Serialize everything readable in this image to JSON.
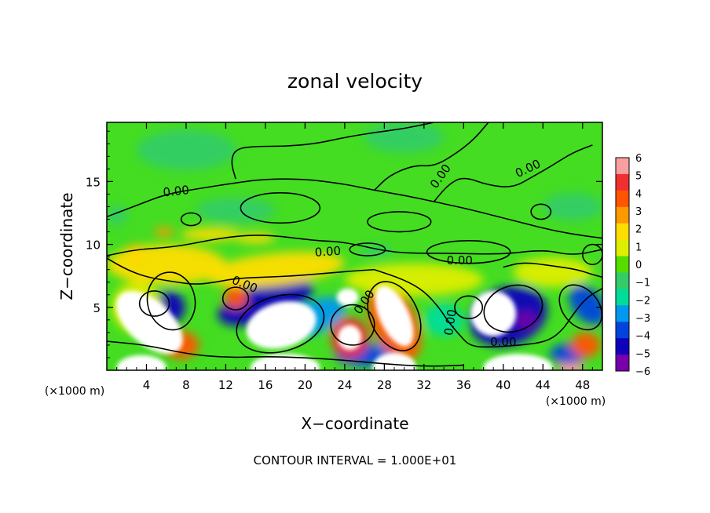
{
  "chart_data": {
    "type": "heatmap",
    "title": "zonal velocity",
    "xlabel": "X−coordinate",
    "ylabel": "Z−coordinate",
    "x_unit": "(×1000 m)",
    "y_unit": "(×1000 m)",
    "xlim": [
      0,
      50
    ],
    "ylim": [
      0,
      19.7
    ],
    "x_ticks": [
      4,
      8,
      12,
      16,
      20,
      24,
      28,
      32,
      36,
      40,
      44,
      48
    ],
    "y_ticks": [
      5,
      10,
      15
    ],
    "x_tick_labels": [
      "4",
      "8",
      "12",
      "16",
      "20",
      "24",
      "28",
      "32",
      "36",
      "40",
      "44",
      "48"
    ],
    "y_tick_labels": [
      "5",
      "10",
      "15"
    ],
    "footer": "CONTOUR INTERVAL = 1.000E+01",
    "colorbar": {
      "levels": [
        6,
        5,
        4,
        3,
        2,
        1,
        0,
        -1,
        -2,
        -3,
        -4,
        -5,
        -6
      ],
      "labels": [
        "6",
        "5",
        "4",
        "3",
        "2",
        "1",
        "0",
        "−1",
        "−2",
        "−3",
        "−4",
        "−5",
        "−6"
      ],
      "colors": [
        "#f8a0a0",
        "#f03030",
        "#ff5500",
        "#ff9900",
        "#ffdd00",
        "#ddee00",
        "#55dd00",
        "#33cc66",
        "#00dd99",
        "#0099ee",
        "#0044dd",
        "#1100bb",
        "#7700aa"
      ]
    },
    "contour_labels": [
      {
        "text": "0.00",
        "x": 7,
        "z": 14.2,
        "rot": -6
      },
      {
        "text": "0.00",
        "x": 22.3,
        "z": 9.4,
        "rot": -4
      },
      {
        "text": "0.00",
        "x": 13.9,
        "z": 6.8,
        "rot": 22
      },
      {
        "text": "0.00",
        "x": 26,
        "z": 5.4,
        "rot": -55
      },
      {
        "text": "0.00",
        "x": 33.7,
        "z": 15.4,
        "rot": -55
      },
      {
        "text": "0.00",
        "x": 42.5,
        "z": 16,
        "rot": -25
      },
      {
        "text": "0.00",
        "x": 35.6,
        "z": 8.7,
        "rot": 0
      },
      {
        "text": "0.00",
        "x": 34.7,
        "z": 3.8,
        "rot": -82
      },
      {
        "text": "0.00",
        "x": 40,
        "z": 2.2,
        "rot": 0
      }
    ],
    "features": [
      {
        "z_value": 9,
        "x": 4.3,
        "z": 3.8,
        "rx": 2.2,
        "rz": 3.2,
        "rot": -48
      },
      {
        "z_value": 8,
        "x": 17.6,
        "z": 3.6,
        "rx": 3.6,
        "rz": 1.8,
        "rot": -15
      },
      {
        "z_value": 8,
        "x": 29,
        "z": 4.3,
        "rx": 1.5,
        "rz": 2.6,
        "rot": -25
      },
      {
        "z_value": 8,
        "x": 39,
        "z": 4.5,
        "rx": 2.3,
        "rz": 1.8,
        "rot": -40
      },
      {
        "z_value": 7,
        "x": 24.5,
        "z": 2.6,
        "rx": 1.2,
        "rz": 1.0,
        "rot": 0
      },
      {
        "z_value": 7,
        "x": 24.3,
        "z": 5.8,
        "rx": 1.1,
        "rz": 0.7,
        "rot": 0
      },
      {
        "z_value": 7,
        "x": 18,
        "z": 0.2,
        "rx": 3.5,
        "rz": 1.1,
        "rot": 0
      },
      {
        "z_value": 7,
        "x": 3.5,
        "z": 0.2,
        "rx": 2.5,
        "rz": 1.0,
        "rot": 0
      },
      {
        "z_value": 7,
        "x": 29,
        "z": 0.2,
        "rx": 2.2,
        "rz": 1.2,
        "rot": 0
      },
      {
        "z_value": 7,
        "x": 41.5,
        "z": 0.2,
        "rx": 3.5,
        "rz": 1.1,
        "rot": 0
      },
      {
        "z_value": 6,
        "x": 46.8,
        "z": 0.2,
        "rx": 1.3,
        "rz": 0.7,
        "rot": 0
      },
      {
        "z_value": -5,
        "x": 16,
        "z": 5.4,
        "rx": 5.0,
        "rz": 1.5,
        "rot": -18
      },
      {
        "z_value": -5,
        "x": 6.3,
        "z": 5.0,
        "rx": 1.6,
        "rz": 1.3,
        "rot": -10
      },
      {
        "z_value": -5,
        "x": 40.5,
        "z": 4.3,
        "rx": 4.0,
        "rz": 2.3,
        "rot": -18
      },
      {
        "z_value": -6,
        "x": 42.3,
        "z": 4.0,
        "rx": 1.0,
        "rz": 0.6,
        "rot": 0
      },
      {
        "z_value": -4,
        "x": 48.5,
        "z": 5.2,
        "rx": 1.5,
        "rz": 1.8,
        "rot": -40
      },
      {
        "z_value": -3,
        "x": 21.3,
        "z": 4.3,
        "rx": 3.0,
        "rz": 1.3,
        "rot": -25
      },
      {
        "z_value": -4,
        "x": 26,
        "z": 1.2,
        "rx": 3.0,
        "rz": 0.9,
        "rot": 0
      },
      {
        "z_value": -4,
        "x": 46.5,
        "z": 1.3,
        "rx": 1.8,
        "rz": 0.8,
        "rot": 0
      },
      {
        "z_value": -3,
        "x": 28.5,
        "z": 2.2,
        "rx": 1.2,
        "rz": 0.8,
        "rot": 0
      },
      {
        "z_value": -2,
        "x": 34,
        "z": 4.0,
        "rx": 2.0,
        "rz": 1.3,
        "rot": 0
      },
      {
        "z_value": 4,
        "x": 29,
        "z": 3.8,
        "rx": 2.3,
        "rz": 3.3,
        "rot": -25
      },
      {
        "z_value": 4,
        "x": 7.5,
        "z": 2.0,
        "rx": 1.8,
        "rz": 1.1,
        "rot": 0
      },
      {
        "z_value": 4,
        "x": 13,
        "z": 5.8,
        "rx": 1.2,
        "rz": 0.9,
        "rot": 0
      },
      {
        "z_value": 5,
        "x": 24.5,
        "z": 2.6,
        "rx": 1.9,
        "rz": 1.6,
        "rot": 0
      },
      {
        "z_value": 4,
        "x": 48.3,
        "z": 2.0,
        "rx": 1.5,
        "rz": 1.0,
        "rot": 0
      },
      {
        "z_value": 3,
        "x": 3,
        "z": 9.4,
        "rx": 1.2,
        "rz": 0.6,
        "rot": 0
      },
      {
        "z_value": 3,
        "x": 5.8,
        "z": 11,
        "rx": 1.0,
        "rz": 0.35,
        "rot": 0
      },
      {
        "z_value": 2,
        "x": 10.5,
        "z": 10.8,
        "rx": 3.0,
        "rz": 0.5,
        "rot": 0
      },
      {
        "z_value": 2,
        "x": 15,
        "z": 10.5,
        "rx": 2.0,
        "rz": 0.4,
        "rot": 0
      },
      {
        "z_value": 2,
        "x": 6,
        "z": 8.4,
        "rx": 6.0,
        "rz": 1.6,
        "rot": 0
      },
      {
        "z_value": 1.5,
        "x": 17,
        "z": 8.0,
        "rx": 7.0,
        "rz": 1.3,
        "rot": -6
      },
      {
        "z_value": 1,
        "x": 31,
        "z": 7.2,
        "rx": 7.0,
        "rz": 1.3,
        "rot": 0
      },
      {
        "z_value": 1,
        "x": 45,
        "z": 7.8,
        "rx": 4.0,
        "rz": 1.2,
        "rot": 0
      },
      {
        "z_value": 1,
        "x": 3,
        "z": 5.0,
        "rx": 2.5,
        "rz": 2.0,
        "rot": 0
      },
      {
        "z_value": -1.5,
        "x": 8,
        "z": 17.5,
        "rx": 5.0,
        "rz": 1.6,
        "rot": 0
      },
      {
        "z_value": -1,
        "x": 30,
        "z": 18.5,
        "rx": 4.0,
        "rz": 1.2,
        "rot": 0
      },
      {
        "z_value": -1,
        "x": 47,
        "z": 13,
        "rx": 3.0,
        "rz": 1.1,
        "rot": 0
      },
      {
        "z_value": -1,
        "x": 13,
        "z": 12.7,
        "rx": 4.0,
        "rz": 1.0,
        "rot": 0
      },
      {
        "z_value": -1,
        "x": 27.2,
        "z": 9.5,
        "rx": 1.6,
        "rz": 0.45,
        "rot": 0
      },
      {
        "z_value": -1.5,
        "x": 1,
        "z": 12.3,
        "rx": 1.0,
        "rz": 0.8,
        "rot": 0
      }
    ],
    "contour_paths": [
      [
        [
          0,
          9.1
        ],
        [
          3,
          9.6
        ],
        [
          7,
          9.8
        ],
        [
          12,
          10.6
        ],
        [
          16,
          10.8
        ],
        [
          21,
          10.3
        ],
        [
          24,
          10.2
        ],
        [
          29,
          9.3
        ],
        [
          34,
          9.3
        ],
        [
          40,
          9.2
        ],
        [
          44,
          9.6
        ],
        [
          47,
          9.1
        ],
        [
          50,
          9.6
        ]
      ],
      [
        [
          0,
          12.2
        ],
        [
          3,
          13.1
        ],
        [
          6,
          14.0
        ],
        [
          9,
          14.4
        ],
        [
          13,
          14.9
        ],
        [
          16,
          15.2
        ],
        [
          20,
          15.2
        ],
        [
          24,
          14.8
        ],
        [
          27,
          14.3
        ],
        [
          30,
          13.9
        ],
        [
          33,
          13.4
        ],
        [
          36,
          12.9
        ],
        [
          39,
          12.3
        ],
        [
          42,
          11.7
        ],
        [
          45,
          11.1
        ],
        [
          48,
          10.7
        ],
        [
          50,
          10.5
        ]
      ],
      [
        [
          13,
          15.2
        ],
        [
          12.5,
          16.6
        ],
        [
          13,
          17.6
        ],
        [
          15,
          17.8
        ],
        [
          18,
          17.8
        ],
        [
          21,
          18
        ],
        [
          24,
          18.5
        ],
        [
          27,
          18.9
        ],
        [
          30,
          19.2
        ],
        [
          33,
          19.7
        ]
      ],
      [
        [
          27,
          14.3
        ],
        [
          28.5,
          15.5
        ],
        [
          31,
          16.3
        ],
        [
          33,
          16.2
        ],
        [
          35,
          17.1
        ],
        [
          37,
          18.3
        ],
        [
          38.5,
          19.7
        ]
      ],
      [
        [
          33,
          13.4
        ],
        [
          34.5,
          14.8
        ],
        [
          36,
          15.4
        ],
        [
          38.5,
          14.7
        ],
        [
          41,
          14.5
        ],
        [
          43,
          15.4
        ],
        [
          45,
          16.3
        ],
        [
          47,
          17.3
        ],
        [
          49,
          17.9
        ]
      ],
      [
        [
          0,
          8.9
        ],
        [
          2,
          8.0
        ],
        [
          4,
          7.4
        ],
        [
          7,
          7.0
        ],
        [
          9,
          6.8
        ],
        [
          11,
          7.0
        ],
        [
          13,
          7.3
        ],
        [
          16,
          7.4
        ],
        [
          19,
          7.5
        ],
        [
          22,
          7.7
        ],
        [
          25,
          7.9
        ],
        [
          27,
          8.0
        ]
      ],
      [
        [
          27,
          8.0
        ],
        [
          30,
          7.2
        ],
        [
          32,
          6.3
        ],
        [
          33.5,
          5.0
        ],
        [
          34.5,
          3.8
        ],
        [
          35.6,
          2.8
        ],
        [
          36.5,
          2.0
        ],
        [
          38,
          1.8
        ],
        [
          42,
          2.0
        ],
        [
          44.5,
          2.3
        ],
        [
          46,
          3.2
        ],
        [
          47,
          4.4
        ],
        [
          48.4,
          5.8
        ],
        [
          50,
          6.5
        ]
      ],
      [
        [
          0,
          2.3
        ],
        [
          4,
          2.0
        ],
        [
          8,
          1.3
        ],
        [
          12,
          1.0
        ],
        [
          16,
          1.1
        ],
        [
          20,
          1.0
        ],
        [
          24,
          0.8
        ],
        [
          28,
          0.5
        ],
        [
          32,
          0.3
        ],
        [
          36,
          0.4
        ]
      ],
      [
        [
          40,
          8.2
        ],
        [
          42,
          8.6
        ],
        [
          45,
          8.3
        ],
        [
          47.5,
          8.0
        ],
        [
          49,
          7.6
        ],
        [
          50,
          7.4
        ]
      ]
    ],
    "closed_contours": [
      {
        "x": 4.8,
        "z": 5.3,
        "rx": 1.5,
        "rz": 1.0,
        "rot": 0
      },
      {
        "x": 8.5,
        "z": 12.0,
        "rx": 1.0,
        "rz": 0.5,
        "rot": 0
      },
      {
        "x": 29.5,
        "z": 11.8,
        "rx": 3.2,
        "rz": 0.8,
        "rot": 0
      },
      {
        "x": 17.5,
        "z": 12.9,
        "rx": 4.0,
        "rz": 1.2,
        "rot": 0
      },
      {
        "x": 36.5,
        "z": 9.4,
        "rx": 4.2,
        "rz": 0.9,
        "rot": 0
      },
      {
        "x": 43.8,
        "z": 12.6,
        "rx": 1.0,
        "rz": 0.6,
        "rot": 0
      },
      {
        "x": 49.0,
        "z": 9.2,
        "rx": 1.0,
        "rz": 0.8,
        "rot": 0
      },
      {
        "x": 26.3,
        "z": 9.6,
        "rx": 1.8,
        "rz": 0.5,
        "rot": 0
      },
      {
        "x": 36.5,
        "z": 5.0,
        "rx": 1.4,
        "rz": 0.9,
        "rot": 0
      },
      {
        "x": 41.0,
        "z": 4.9,
        "rx": 3.0,
        "rz": 1.8,
        "rot": -18
      },
      {
        "x": 13.0,
        "z": 5.7,
        "rx": 1.3,
        "rz": 0.9,
        "rot": 0
      },
      {
        "x": 29.0,
        "z": 4.3,
        "rx": 2.4,
        "rz": 2.9,
        "rot": -25
      },
      {
        "x": 17.5,
        "z": 3.7,
        "rx": 4.5,
        "rz": 2.2,
        "rot": -15
      },
      {
        "x": 24.8,
        "z": 3.6,
        "rx": 2.2,
        "rz": 1.6,
        "rot": 0
      },
      {
        "x": 47.8,
        "z": 5.0,
        "rx": 1.8,
        "rz": 2.0,
        "rot": -40
      },
      {
        "x": 6.5,
        "z": 5.5,
        "rx": 2.4,
        "rz": 2.3,
        "rot": -10
      }
    ],
    "colors": {
      "background": "#44dd22",
      "light_band": "#88ee00",
      "frame": "#000000",
      "contour": "#000000",
      "peak": "#ffffff"
    }
  }
}
